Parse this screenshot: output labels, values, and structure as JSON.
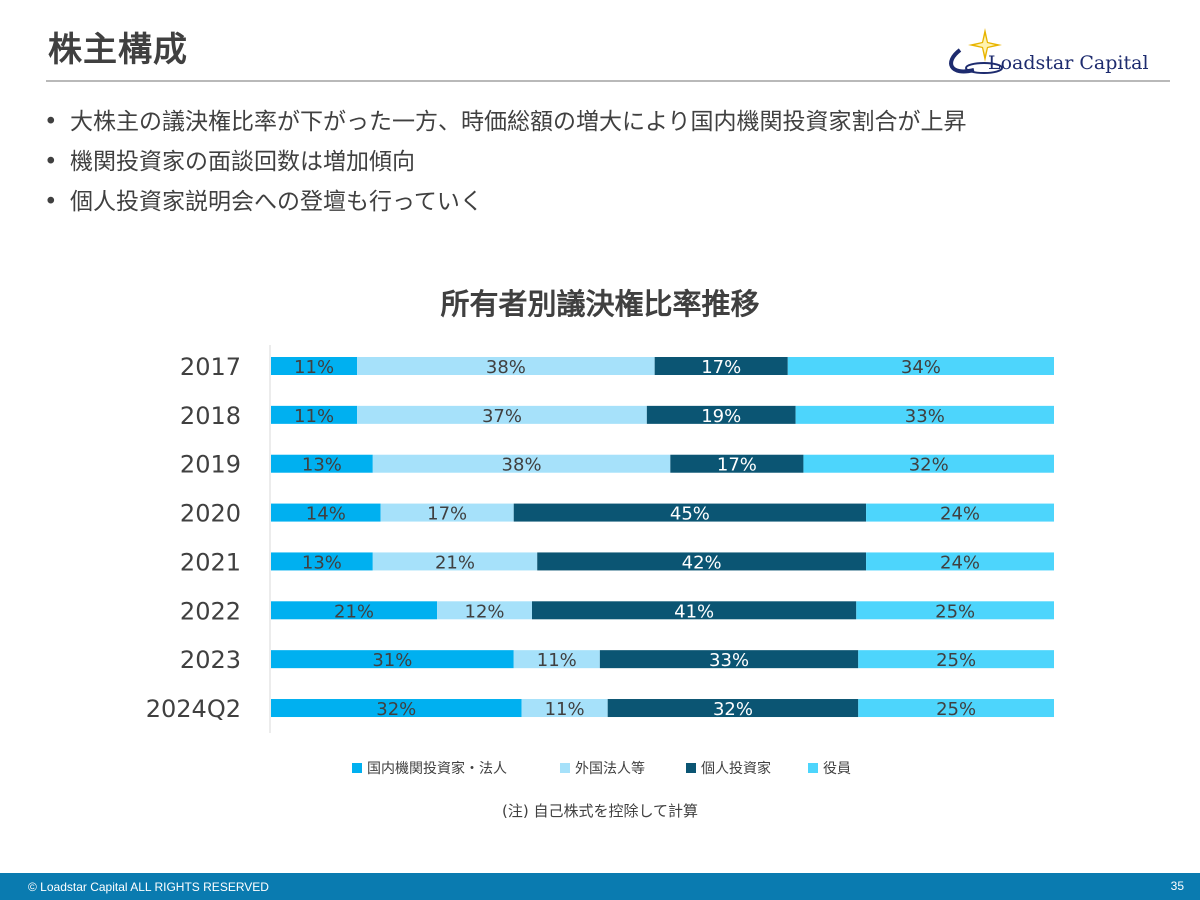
{
  "header": {
    "title": "株主構成",
    "logo_text": "Loadstar Capital"
  },
  "bullets": [
    "大株主の議決権比率が下がった一方、時価総額の増大により国内機関投資家割合が上昇",
    "機関投資家の面談回数は増加傾向",
    "個人投資家説明会への登壇も行っていく"
  ],
  "bullet_glyph": "•",
  "chart_data": {
    "type": "bar",
    "orientation": "horizontal",
    "stacked": true,
    "normalized": true,
    "title": "所有者別議決権比率推移",
    "categories": [
      "2017",
      "2018",
      "2019",
      "2020",
      "2021",
      "2022",
      "2023",
      "2024Q2"
    ],
    "series": [
      {
        "name": "国内機関投資家・法人",
        "color": "#00b0f0",
        "values": [
          11,
          11,
          13,
          14,
          13,
          21,
          31,
          32
        ]
      },
      {
        "name": "外国法人等",
        "color": "#a6e1fa",
        "values": [
          38,
          37,
          38,
          17,
          21,
          12,
          11,
          11
        ]
      },
      {
        "name": "個人投資家",
        "color": "#0b5573",
        "values": [
          17,
          19,
          17,
          45,
          42,
          41,
          33,
          32
        ]
      },
      {
        "name": "役員",
        "color": "#4dd5fc",
        "values": [
          34,
          33,
          32,
          24,
          24,
          25,
          25,
          25
        ]
      }
    ],
    "value_suffix": "%",
    "legend_position": "bottom",
    "grid": false
  },
  "footnote": "(注) 自己株式を控除して計算",
  "footer": {
    "copyright": "© Loadstar Capital ALL RIGHTS RESERVED",
    "page_number": "35"
  }
}
